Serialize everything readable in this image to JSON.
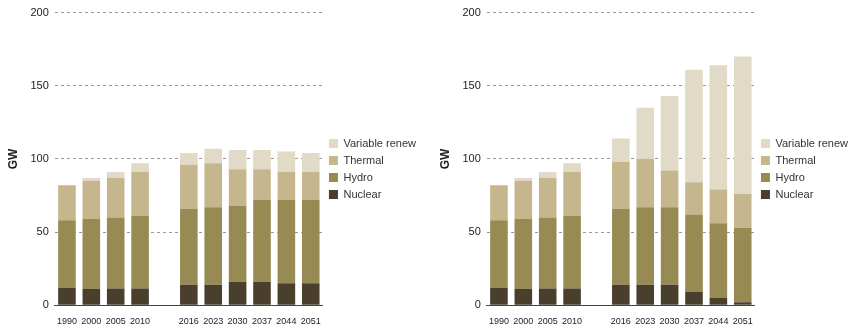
{
  "chart_data": [
    {
      "type": "bar",
      "stacked": true,
      "ylabel": "GW",
      "categories": [
        "1990",
        "2000",
        "2005",
        "2010",
        null,
        "2016",
        "2023",
        "2030",
        "2037",
        "2044",
        "2051"
      ],
      "series": [
        {
          "name": "Nuclear",
          "color": "#4a3f2c",
          "values": [
            12,
            11,
            11.5,
            11.5,
            null,
            14,
            14,
            16,
            16,
            15,
            15
          ]
        },
        {
          "name": "Hydro",
          "color": "#978a52",
          "values": [
            46,
            48,
            48.5,
            49.5,
            null,
            52,
            53,
            52,
            56,
            57,
            57
          ]
        },
        {
          "name": "Thermal",
          "color": "#c5b68d",
          "values": [
            24,
            26,
            27,
            30,
            null,
            30,
            30,
            25,
            21,
            19,
            19
          ]
        },
        {
          "name": "Variable renew",
          "color": "#e0dac6",
          "values": [
            0,
            2,
            4,
            6,
            null,
            8,
            10,
            13,
            13,
            14,
            13
          ]
        }
      ],
      "ylim": [
        0,
        200
      ],
      "yticks": [
        0,
        50,
        100,
        150,
        200
      ],
      "grid": true,
      "legend": "right"
    },
    {
      "type": "bar",
      "stacked": true,
      "ylabel": "GW",
      "categories": [
        "1990",
        "2000",
        "2005",
        "2010",
        null,
        "2016",
        "2023",
        "2030",
        "2037",
        "2044",
        "2051"
      ],
      "series": [
        {
          "name": "Nuclear",
          "color": "#4a3f2c",
          "values": [
            12,
            11,
            11.5,
            11.5,
            null,
            14,
            14,
            14,
            9,
            5,
            2
          ]
        },
        {
          "name": "Hydro",
          "color": "#978a52",
          "values": [
            46,
            48,
            48.5,
            49.5,
            null,
            52,
            53,
            53,
            53,
            51,
            51
          ]
        },
        {
          "name": "Thermal",
          "color": "#c5b68d",
          "values": [
            24,
            26,
            27,
            30,
            null,
            32,
            33,
            25,
            22,
            23,
            23
          ]
        },
        {
          "name": "Variable renew",
          "color": "#e0dac6",
          "values": [
            0,
            2,
            4,
            6,
            null,
            16,
            35,
            51,
            77,
            85,
            94
          ]
        }
      ],
      "ylim": [
        0,
        200
      ],
      "yticks": [
        0,
        50,
        100,
        150,
        200
      ],
      "grid": true,
      "legend": "right"
    }
  ]
}
